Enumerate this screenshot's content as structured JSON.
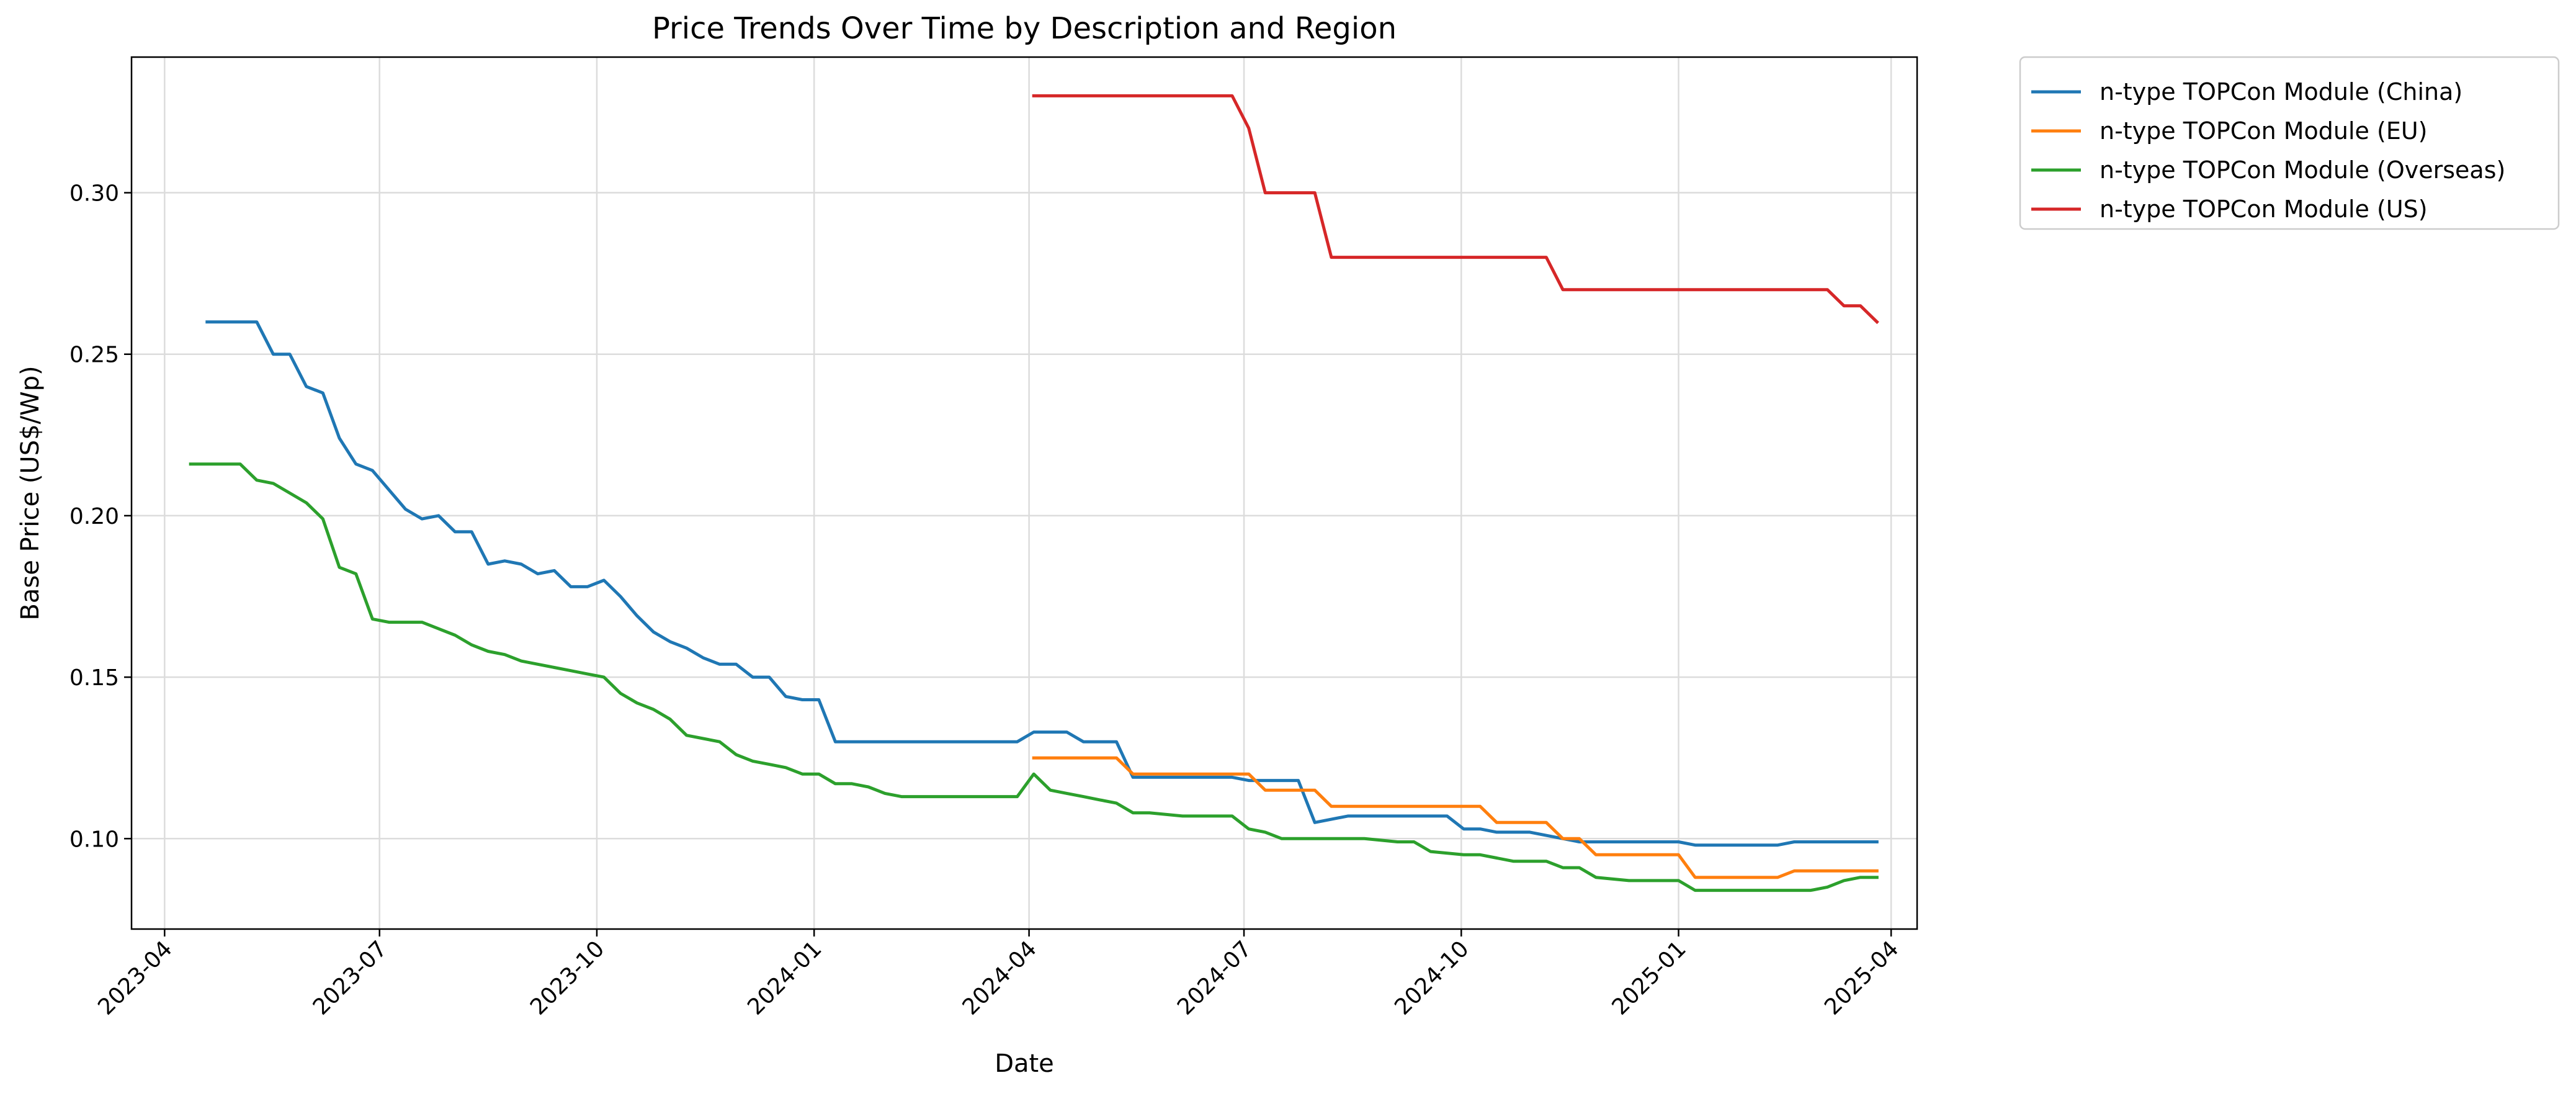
{
  "chart_data": {
    "type": "line",
    "title": "Price Trends Over Time by Description and Region",
    "xlabel": "Date",
    "ylabel": "Base Price (US$/Wp)",
    "x_type": "date",
    "xlim": [
      "2023-03-18",
      "2025-04-12"
    ],
    "ylim": [
      0.072,
      0.342
    ],
    "x_ticks": [
      "2023-04-01",
      "2023-07-01",
      "2023-10-01",
      "2024-01-01",
      "2024-04-01",
      "2024-07-01",
      "2024-10-01",
      "2025-01-01",
      "2025-04-01"
    ],
    "x_tick_labels": [
      "2023-04",
      "2023-07",
      "2023-10",
      "2024-01",
      "2024-04",
      "2024-07",
      "2024-10",
      "2025-01",
      "2025-04"
    ],
    "y_ticks": [
      0.1,
      0.15,
      0.2,
      0.25,
      0.3
    ],
    "y_tick_labels": [
      "0.10",
      "0.15",
      "0.20",
      "0.25",
      "0.30"
    ],
    "grid": true,
    "legend_position": "outside top-right",
    "series": [
      {
        "name": "n-type TOPCon Module (China)",
        "color": "#1f77b4",
        "points": [
          [
            "2023-04-19",
            0.26
          ],
          [
            "2023-05-10",
            0.26
          ],
          [
            "2023-05-17",
            0.25
          ],
          [
            "2023-05-24",
            0.25
          ],
          [
            "2023-05-31",
            0.24
          ],
          [
            "2023-06-07",
            0.238
          ],
          [
            "2023-06-14",
            0.224
          ],
          [
            "2023-06-21",
            0.216
          ],
          [
            "2023-06-28",
            0.214
          ],
          [
            "2023-07-05",
            0.208
          ],
          [
            "2023-07-12",
            0.202
          ],
          [
            "2023-07-19",
            0.199
          ],
          [
            "2023-07-26",
            0.2
          ],
          [
            "2023-08-02",
            0.195
          ],
          [
            "2023-08-09",
            0.195
          ],
          [
            "2023-08-16",
            0.185
          ],
          [
            "2023-08-23",
            0.186
          ],
          [
            "2023-08-30",
            0.185
          ],
          [
            "2023-09-06",
            0.182
          ],
          [
            "2023-09-13",
            0.183
          ],
          [
            "2023-09-20",
            0.178
          ],
          [
            "2023-09-27",
            0.178
          ],
          [
            "2023-10-04",
            0.18
          ],
          [
            "2023-10-11",
            0.175
          ],
          [
            "2023-10-18",
            0.169
          ],
          [
            "2023-10-25",
            0.164
          ],
          [
            "2023-11-01",
            0.161
          ],
          [
            "2023-11-08",
            0.159
          ],
          [
            "2023-11-15",
            0.156
          ],
          [
            "2023-11-22",
            0.154
          ],
          [
            "2023-11-29",
            0.154
          ],
          [
            "2023-12-06",
            0.15
          ],
          [
            "2023-12-13",
            0.15
          ],
          [
            "2023-12-20",
            0.144
          ],
          [
            "2023-12-27",
            0.143
          ],
          [
            "2024-01-03",
            0.143
          ],
          [
            "2024-01-10",
            0.13
          ],
          [
            "2024-03-27",
            0.13
          ],
          [
            "2024-04-03",
            0.133
          ],
          [
            "2024-04-17",
            0.133
          ],
          [
            "2024-04-24",
            0.13
          ],
          [
            "2024-05-08",
            0.13
          ],
          [
            "2024-05-15",
            0.119
          ],
          [
            "2024-06-26",
            0.119
          ],
          [
            "2024-07-03",
            0.118
          ],
          [
            "2024-07-24",
            0.118
          ],
          [
            "2024-07-31",
            0.105
          ],
          [
            "2024-08-14",
            0.107
          ],
          [
            "2024-09-25",
            0.107
          ],
          [
            "2024-10-02",
            0.103
          ],
          [
            "2024-10-09",
            0.103
          ],
          [
            "2024-10-16",
            0.102
          ],
          [
            "2024-10-30",
            0.102
          ],
          [
            "2024-11-13",
            0.1
          ],
          [
            "2024-11-20",
            0.099
          ],
          [
            "2025-01-01",
            0.099
          ],
          [
            "2025-01-08",
            0.098
          ],
          [
            "2025-02-12",
            0.098
          ],
          [
            "2025-02-19",
            0.099
          ],
          [
            "2025-03-26",
            0.099
          ]
        ]
      },
      {
        "name": "n-type TOPCon Module (EU)",
        "color": "#ff7f0e",
        "points": [
          [
            "2024-04-03",
            0.125
          ],
          [
            "2024-05-08",
            0.125
          ],
          [
            "2024-05-15",
            0.12
          ],
          [
            "2024-07-03",
            0.12
          ],
          [
            "2024-07-10",
            0.115
          ],
          [
            "2024-07-31",
            0.115
          ],
          [
            "2024-08-07",
            0.11
          ],
          [
            "2024-10-09",
            0.11
          ],
          [
            "2024-10-16",
            0.105
          ],
          [
            "2024-11-06",
            0.105
          ],
          [
            "2024-11-13",
            0.1
          ],
          [
            "2024-11-20",
            0.1
          ],
          [
            "2024-11-27",
            0.095
          ],
          [
            "2025-01-01",
            0.095
          ],
          [
            "2025-01-08",
            0.088
          ],
          [
            "2025-02-12",
            0.088
          ],
          [
            "2025-02-19",
            0.09
          ],
          [
            "2025-03-26",
            0.09
          ]
        ]
      },
      {
        "name": "n-type TOPCon Module (Overseas)",
        "color": "#2ca02c",
        "points": [
          [
            "2023-04-12",
            0.216
          ],
          [
            "2023-05-03",
            0.216
          ],
          [
            "2023-05-10",
            0.211
          ],
          [
            "2023-05-17",
            0.21
          ],
          [
            "2023-05-24",
            0.207
          ],
          [
            "2023-05-31",
            0.204
          ],
          [
            "2023-06-07",
            0.199
          ],
          [
            "2023-06-14",
            0.184
          ],
          [
            "2023-06-21",
            0.182
          ],
          [
            "2023-06-28",
            0.168
          ],
          [
            "2023-07-05",
            0.167
          ],
          [
            "2023-07-19",
            0.167
          ],
          [
            "2023-07-26",
            0.165
          ],
          [
            "2023-08-02",
            0.163
          ],
          [
            "2023-08-09",
            0.16
          ],
          [
            "2023-08-16",
            0.158
          ],
          [
            "2023-08-23",
            0.157
          ],
          [
            "2023-08-30",
            0.155
          ],
          [
            "2023-09-06",
            0.154
          ],
          [
            "2023-09-13",
            0.153
          ],
          [
            "2023-09-20",
            0.152
          ],
          [
            "2023-09-27",
            0.151
          ],
          [
            "2023-10-04",
            0.15
          ],
          [
            "2023-10-11",
            0.145
          ],
          [
            "2023-10-18",
            0.142
          ],
          [
            "2023-10-25",
            0.14
          ],
          [
            "2023-11-01",
            0.137
          ],
          [
            "2023-11-08",
            0.132
          ],
          [
            "2023-11-15",
            0.131
          ],
          [
            "2023-11-22",
            0.13
          ],
          [
            "2023-11-29",
            0.126
          ],
          [
            "2023-12-06",
            0.124
          ],
          [
            "2023-12-13",
            0.123
          ],
          [
            "2023-12-20",
            0.122
          ],
          [
            "2023-12-27",
            0.12
          ],
          [
            "2024-01-03",
            0.12
          ],
          [
            "2024-01-10",
            0.117
          ],
          [
            "2024-01-17",
            0.117
          ],
          [
            "2024-01-24",
            0.116
          ],
          [
            "2024-01-31",
            0.114
          ],
          [
            "2024-02-07",
            0.113
          ],
          [
            "2024-03-27",
            0.113
          ],
          [
            "2024-04-03",
            0.12
          ],
          [
            "2024-04-10",
            0.115
          ],
          [
            "2024-04-17",
            0.114
          ],
          [
            "2024-04-24",
            0.113
          ],
          [
            "2024-05-01",
            0.112
          ],
          [
            "2024-05-08",
            0.111
          ],
          [
            "2024-05-15",
            0.108
          ],
          [
            "2024-05-22",
            0.108
          ],
          [
            "2024-06-05",
            0.107
          ],
          [
            "2024-06-26",
            0.107
          ],
          [
            "2024-07-03",
            0.103
          ],
          [
            "2024-07-10",
            0.102
          ],
          [
            "2024-07-17",
            0.1
          ],
          [
            "2024-08-21",
            0.1
          ],
          [
            "2024-09-04",
            0.099
          ],
          [
            "2024-09-11",
            0.099
          ],
          [
            "2024-09-18",
            0.096
          ],
          [
            "2024-10-02",
            0.095
          ],
          [
            "2024-10-09",
            0.095
          ],
          [
            "2024-10-16",
            0.094
          ],
          [
            "2024-10-23",
            0.093
          ],
          [
            "2024-11-06",
            0.093
          ],
          [
            "2024-11-13",
            0.091
          ],
          [
            "2024-11-20",
            0.091
          ],
          [
            "2024-11-27",
            0.088
          ],
          [
            "2024-12-11",
            0.087
          ],
          [
            "2024-12-18",
            0.087
          ],
          [
            "2025-01-01",
            0.087
          ],
          [
            "2025-01-08",
            0.084
          ],
          [
            "2025-02-26",
            0.084
          ],
          [
            "2025-03-05",
            0.085
          ],
          [
            "2025-03-12",
            0.087
          ],
          [
            "2025-03-19",
            0.088
          ],
          [
            "2025-03-26",
            0.088
          ]
        ]
      },
      {
        "name": "n-type TOPCon Module (US)",
        "color": "#d62728",
        "points": [
          [
            "2024-04-03",
            0.33
          ],
          [
            "2024-06-26",
            0.33
          ],
          [
            "2024-07-03",
            0.32
          ],
          [
            "2024-07-10",
            0.3
          ],
          [
            "2024-07-31",
            0.3
          ],
          [
            "2024-08-07",
            0.28
          ],
          [
            "2024-11-06",
            0.28
          ],
          [
            "2024-11-13",
            0.27
          ],
          [
            "2025-03-05",
            0.27
          ],
          [
            "2025-03-12",
            0.265
          ],
          [
            "2025-03-19",
            0.265
          ],
          [
            "2025-03-26",
            0.26
          ]
        ]
      }
    ]
  }
}
